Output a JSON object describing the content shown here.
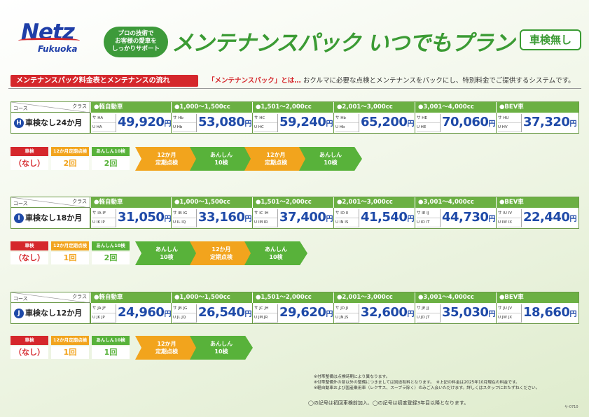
{
  "brand": {
    "name": "Netz",
    "sub": "Fukuoka"
  },
  "bubble": [
    "プロの技術で",
    "お客様の愛車を",
    "しっかりサポート"
  ],
  "title": "メンテナンスパック いつでもプラン",
  "badge": "車検無し",
  "subhead": "メンテナンスパック料金表とメンテナンスの流れ",
  "desc_key": "「メンテナンスパック」とは…",
  "desc_text": " おクルマに必要な点検とメンテナンスをパックにし、特別料金でご提供するシステムです。",
  "corner": {
    "course": "コース",
    "class": "クラス"
  },
  "classes": [
    "●軽自動車",
    "●1,000～1,500cc",
    "●1,501～2,000cc",
    "●2,001～3,000cc",
    "●3,001～4,000cc",
    "●BEV車"
  ],
  "yen": "円",
  "plans": [
    {
      "letter": "H",
      "label": "車検なし24か月",
      "codes": [
        [
          "サ HA",
          "U HA"
        ],
        [
          "サ Hb",
          "U Hb"
        ],
        [
          "サ HC",
          "U HC"
        ],
        [
          "サ Hb",
          "U Hb"
        ],
        [
          "サ HE",
          "U HE"
        ],
        [
          "サ HU",
          "U HV"
        ]
      ],
      "prices": [
        "49,920",
        "53,080",
        "59,240",
        "65,200",
        "70,060",
        "37,320"
      ],
      "legend": {
        "h1": "車検",
        "h2": "12か月定期点検",
        "h3": "あんしん10検",
        "v1": "（なし）",
        "v2": "2回",
        "v3": "2回"
      },
      "steps": [
        {
          "t": "12か月\n定期点検",
          "c": "o"
        },
        {
          "t": "あんしん\n10検",
          "c": "g"
        },
        {
          "t": "12か月\n定期点検",
          "c": "o"
        },
        {
          "t": "あんしん\n10検",
          "c": "g"
        }
      ]
    },
    {
      "letter": "I",
      "label": "車検なし18か月",
      "codes": [
        [
          "サ IA IF",
          "U IK IP"
        ],
        [
          "サ IB IG",
          "U IL IQ"
        ],
        [
          "サ IC IH",
          "U IM IR"
        ],
        [
          "サ ID II",
          "U IN IS"
        ],
        [
          "サ IE IJ",
          "U IO IT"
        ],
        [
          "サ IU IV",
          "U IW IX"
        ]
      ],
      "prices": [
        "31,050",
        "33,160",
        "37,400",
        "41,540",
        "44,730",
        "22,440"
      ],
      "legend": {
        "h1": "車検",
        "h2": "12か月定期点検",
        "h3": "あんしん10検",
        "v1": "（なし）",
        "v2": "1回",
        "v3": "2回"
      },
      "steps": [
        {
          "t": "あんしん\n10検",
          "c": "g"
        },
        {
          "t": "12か月\n定期点検",
          "c": "o"
        },
        {
          "t": "あんしん\n10検",
          "c": "g"
        }
      ]
    },
    {
      "letter": "J",
      "label": "車検なし12か月",
      "codes": [
        [
          "サ JA JF",
          "U JK JP"
        ],
        [
          "サ JB JG",
          "U JL JQ"
        ],
        [
          "サ JC JH",
          "U JM JR"
        ],
        [
          "サ JD JI",
          "U JN JS"
        ],
        [
          "サ JE JJ",
          "U JO JT"
        ],
        [
          "サ JU JV",
          "U JW JX"
        ]
      ],
      "prices": [
        "24,960",
        "26,540",
        "29,620",
        "32,600",
        "35,030",
        "18,660"
      ],
      "legend": {
        "h1": "車検",
        "h2": "12か月定期点検",
        "h3": "あんしん10検",
        "v1": "（なし）",
        "v2": "1回",
        "v3": "1回"
      },
      "steps": [
        {
          "t": "12か月\n定期点検",
          "c": "o"
        },
        {
          "t": "あんしん\n10検",
          "c": "g"
        }
      ]
    }
  ],
  "notes": [
    "※付帯整備は点検時期により異なります。",
    "※付帯整備外の部以外の整備につきましては別途有料となります。　※上記の料金は2025年10月現在の料金です。",
    "※軽自動車および国産乗用車（レクサス、スープラ除く）のみご入会いただけます。詳しくはスタッフにおたずねください。"
  ],
  "footer": "◯の記号は初回車検前加入、◯の記号は初度登録3年目以降となります。",
  "code": "サ-0710"
}
